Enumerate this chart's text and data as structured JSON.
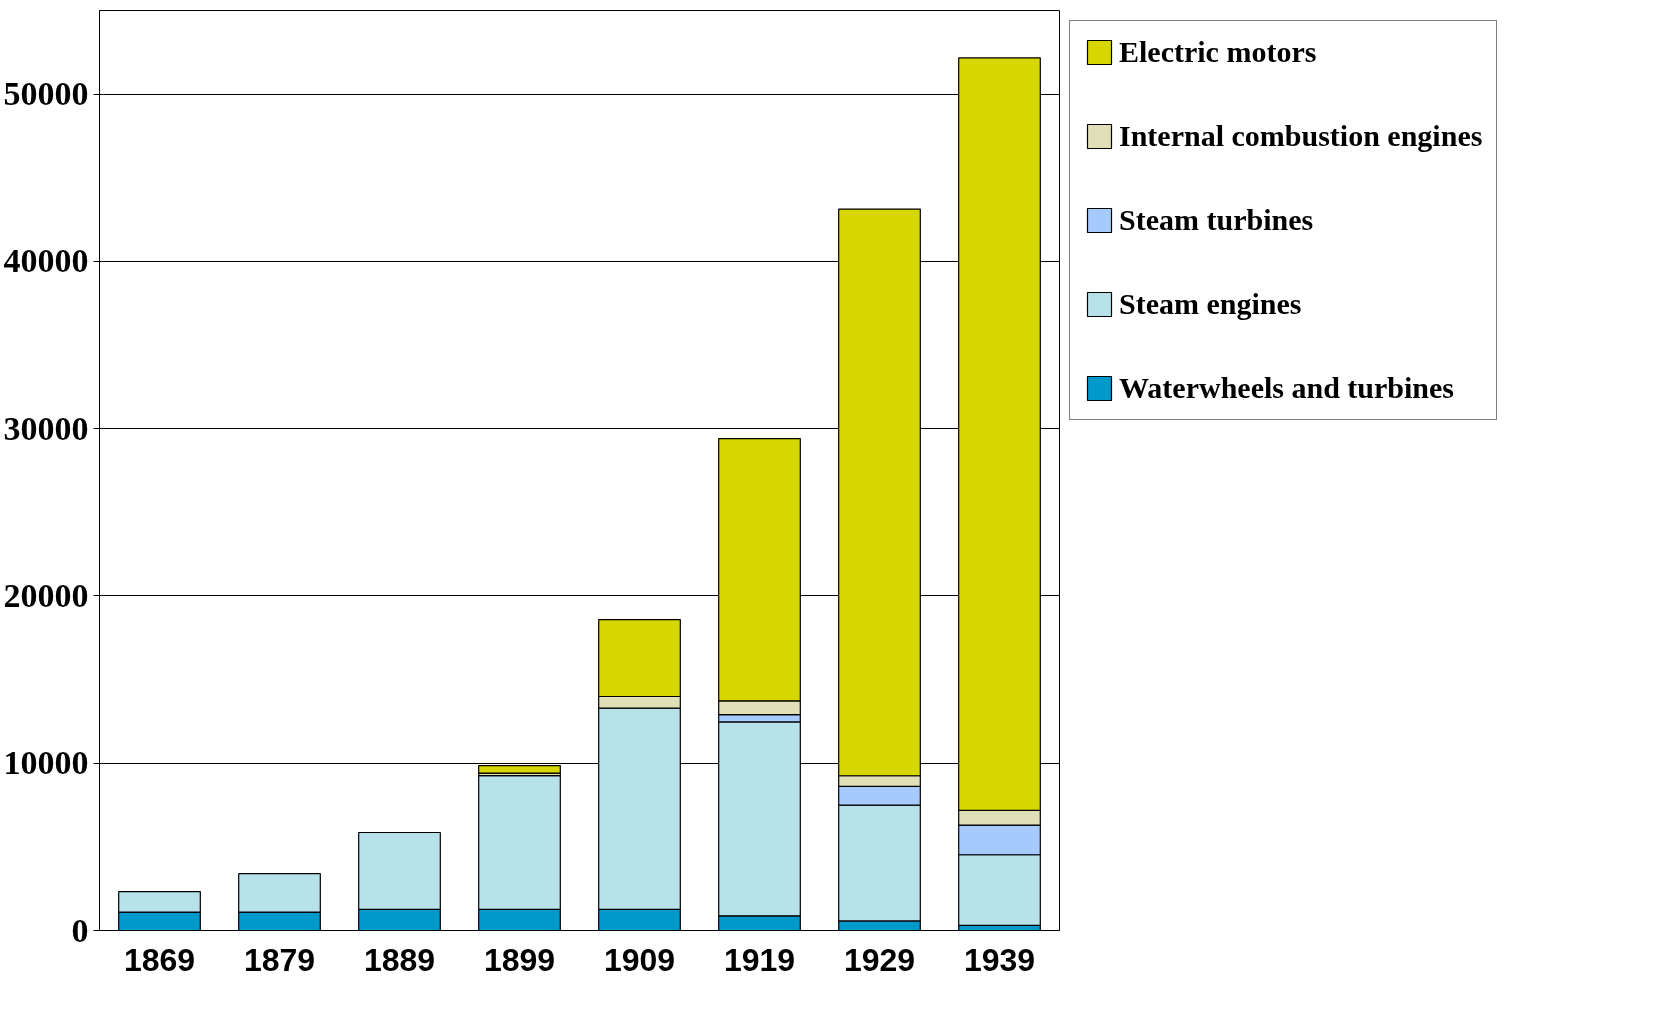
{
  "chart_data": {
    "type": "bar",
    "stacked": true,
    "categories": [
      "1869",
      "1879",
      "1889",
      "1899",
      "1909",
      "1919",
      "1929",
      "1939"
    ],
    "series": [
      {
        "name": "Waterwheels and turbines",
        "color": "#0099cc",
        "values": [
          1100,
          1100,
          1260,
          1260,
          1260,
          880,
          570,
          310
        ]
      },
      {
        "name": "Steam engines",
        "color": "#b8e2ea",
        "values": [
          1230,
          2300,
          4600,
          8000,
          12030,
          11590,
          6920,
          4220
        ]
      },
      {
        "name": "Steam turbines",
        "color": "#a6cafc",
        "values": [
          null,
          null,
          null,
          null,
          null,
          440,
          1130,
          1770
        ]
      },
      {
        "name": "Internal combustion engines",
        "color": "#e0e0b8",
        "values": [
          null,
          null,
          null,
          150,
          700,
          820,
          630,
          880
        ]
      },
      {
        "name": "Electric motors",
        "color": "#d6d600",
        "values": [
          null,
          null,
          null,
          450,
          4600,
          15680,
          33880,
          44990
        ]
      }
    ],
    "ylim": [
      0,
      55000
    ],
    "yticks": [
      0,
      10000,
      20000,
      30000,
      40000,
      50000
    ],
    "grid": "y",
    "legend": "right"
  }
}
